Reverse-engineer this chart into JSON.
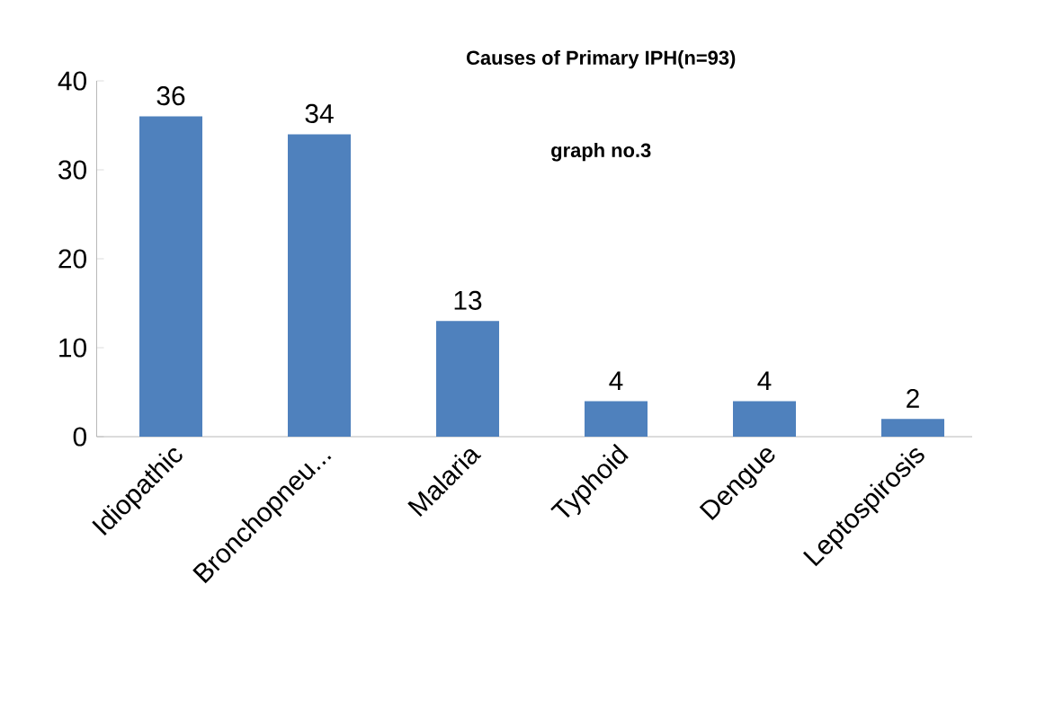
{
  "chart_data": {
    "type": "bar",
    "title": "Causes of Primary  IPH(n=93)",
    "subtitle": "graph no.3",
    "categories": [
      "Idiopathic",
      "Bronchopneu...",
      "Malaria",
      "Typhoid",
      "Dengue",
      "Leptospirosis"
    ],
    "values": [
      36,
      34,
      13,
      4,
      4,
      2
    ],
    "color": "#4f81bd",
    "data_labels": true,
    "ylim": [
      0,
      40
    ],
    "yticks": [
      0,
      10,
      20,
      30,
      40
    ],
    "grid": false
  }
}
